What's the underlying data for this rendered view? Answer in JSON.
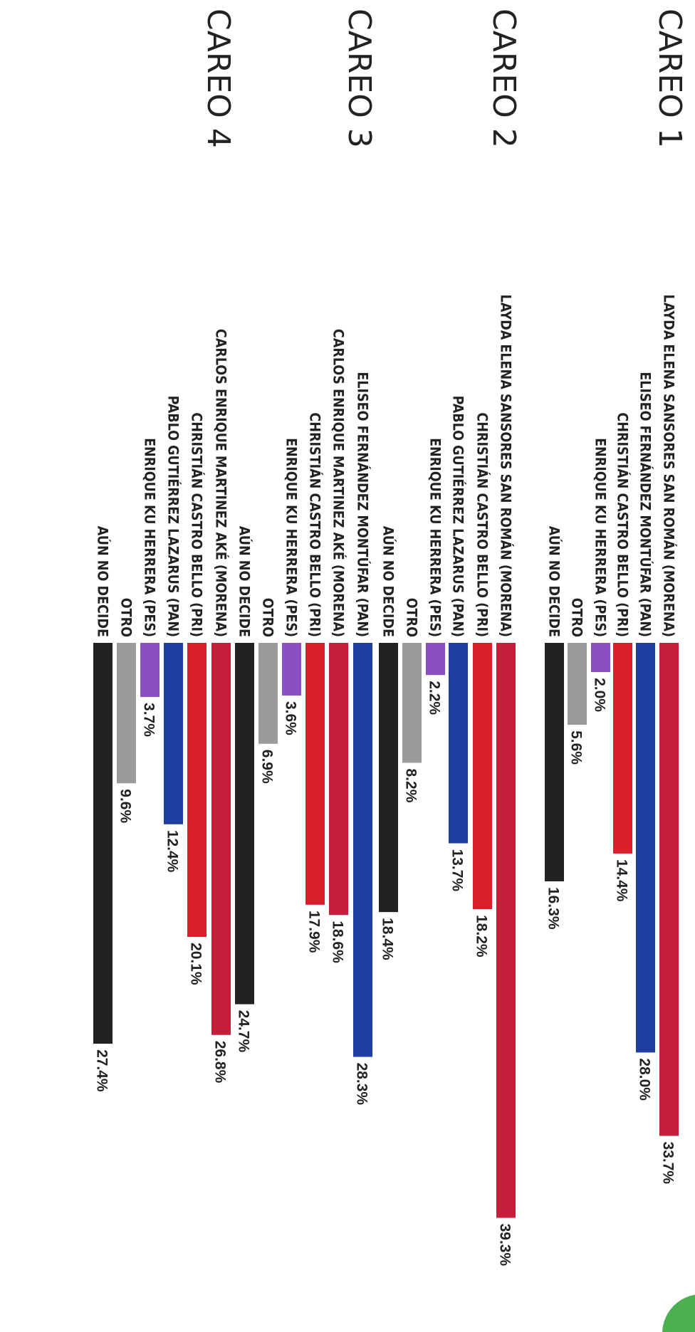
{
  "colors": {
    "MORENA": "#c41e3a",
    "PAN": "#1f3fa0",
    "PRI": "#d7202c",
    "PES": "#8a4fc1",
    "OTRO": "#9b9b9b",
    "UNDECIDED": "#222222",
    "corner_mark": "#4caf50"
  },
  "chart_data": {
    "type": "bar",
    "orientation": "horizontal",
    "xlim": [
      0,
      40
    ],
    "grid": false,
    "legend": "none",
    "panels": [
      {
        "title": "CAREO 1",
        "bars": [
          {
            "label": "LAYDA ELENA SANSORES SAN ROMÁN (MORENA)",
            "party": "MORENA",
            "value": 33.7,
            "value_text": "33.7%"
          },
          {
            "label": "ELISEO FERNÁNDEZ MONTÚFAR (PAN)",
            "party": "PAN",
            "value": 28.0,
            "value_text": "28.0%"
          },
          {
            "label": "CHRISTIÁN CASTRO BELLO (PRI)",
            "party": "PRI",
            "value": 14.4,
            "value_text": "14.4%"
          },
          {
            "label": "ENRIQUE KU HERRERA (PES)",
            "party": "PES",
            "value": 2.0,
            "value_text": "2.0%"
          },
          {
            "label": "OTRO",
            "party": "OTRO",
            "value": 5.6,
            "value_text": "5.6%"
          },
          {
            "label": "AÚN NO DECIDE",
            "party": "UNDECIDED",
            "value": 16.3,
            "value_text": "16.3%"
          }
        ]
      },
      {
        "title": "CAREO 2",
        "bars": [
          {
            "label": "LAYDA ELENA SANSORES SAN ROMÁN (MORENA)",
            "party": "MORENA",
            "value": 39.3,
            "value_text": "39.3%"
          },
          {
            "label": "CHRISTIÁN CASTRO BELLO (PRI)",
            "party": "PRI",
            "value": 18.2,
            "value_text": "18.2%"
          },
          {
            "label": "PABLO GUTIÉRREZ LAZARUS (PAN)",
            "party": "PAN",
            "value": 13.7,
            "value_text": "13.7%"
          },
          {
            "label": "ENRIQUE KU HERRERA (PES)",
            "party": "PES",
            "value": 2.2,
            "value_text": "2.2%"
          },
          {
            "label": "OTRO",
            "party": "OTRO",
            "value": 8.2,
            "value_text": "8.2%"
          },
          {
            "label": "AÚN NO DECIDE",
            "party": "UNDECIDED",
            "value": 18.4,
            "value_text": "18.4%"
          }
        ]
      },
      {
        "title": "CAREO 3",
        "bars": [
          {
            "label": "ELISEO FERNÁNDEZ MONTÚFAR (PAN)",
            "party": "PAN",
            "value": 28.3,
            "value_text": "28.3%"
          },
          {
            "label": "CARLOS ENRIQUE MARTINEZ AKÉ (MORENA)",
            "party": "MORENA",
            "value": 18.6,
            "value_text": "18.6%"
          },
          {
            "label": "CHRISTIÁN CASTRO BELLO (PRI)",
            "party": "PRI",
            "value": 17.9,
            "value_text": "17.9%"
          },
          {
            "label": "ENRIQUE KU HERRERA (PES)",
            "party": "PES",
            "value": 3.6,
            "value_text": "3.6%"
          },
          {
            "label": "OTRO",
            "party": "OTRO",
            "value": 6.9,
            "value_text": "6.9%"
          },
          {
            "label": "AÚN NO DECIDE",
            "party": "UNDECIDED",
            "value": 24.7,
            "value_text": "24.7%"
          }
        ]
      },
      {
        "title": "CAREO 4",
        "bars": [
          {
            "label": "CARLOS ENRIQUE MARTINEZ AKÉ (MORENA)",
            "party": "MORENA",
            "value": 26.8,
            "value_text": "26.8%"
          },
          {
            "label": "CHRISTIÁN CASTRO BELLO (PRI)",
            "party": "PRI",
            "value": 20.1,
            "value_text": "20.1%"
          },
          {
            "label": "PABLO GUTIÉRREZ LAZARUS (PAN)",
            "party": "PAN",
            "value": 12.4,
            "value_text": "12.4%"
          },
          {
            "label": "ENRIQUE KU HERRERA (PES)",
            "party": "PES",
            "value": 3.7,
            "value_text": "3.7%"
          },
          {
            "label": "OTRO",
            "party": "OTRO",
            "value": 9.6,
            "value_text": "9.6%"
          },
          {
            "label": "AÚN NO DECIDE",
            "party": "UNDECIDED",
            "value": 27.4,
            "value_text": "27.4%"
          }
        ]
      }
    ]
  }
}
